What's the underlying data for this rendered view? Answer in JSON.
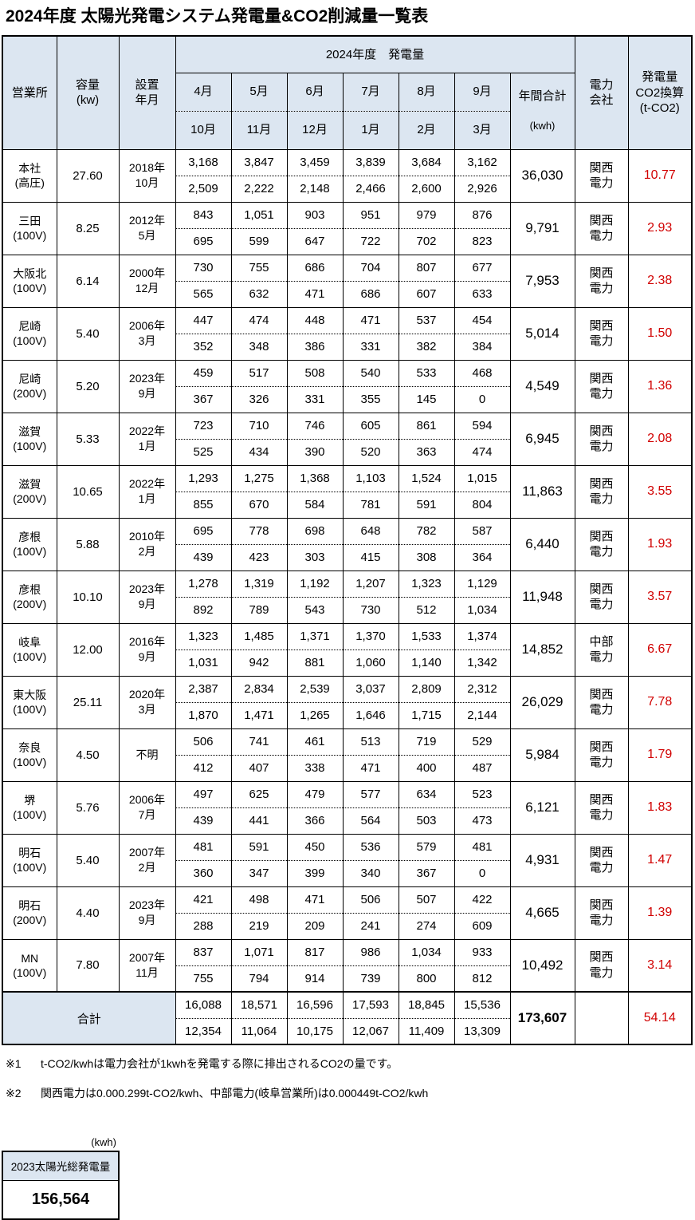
{
  "title": "2024年度 太陽光発電システム発電量&CO2削減量一覧表",
  "colors": {
    "header_bg": "#dce6f1",
    "co2_text": "#d10000",
    "border": "#000000"
  },
  "table": {
    "headers": {
      "office": "営業所",
      "capacity": "容量\n(kw)",
      "install": "設置\n年月",
      "generation": "2024年度　発電量",
      "months_top": [
        "4月",
        "5月",
        "6月",
        "7月",
        "8月",
        "9月"
      ],
      "months_bottom": [
        "10月",
        "11月",
        "12月",
        "1月",
        "2月",
        "3月"
      ],
      "annual": "年間合計",
      "annual_unit": "(kwh)",
      "company": "電力\n会社",
      "co2": "発電量\nCO2換算\n(t-CO2)"
    },
    "rows": [
      {
        "office": "本社\n(高圧)",
        "capacity": "27.60",
        "install": "2018年\n10月",
        "top": [
          "3,168",
          "3,847",
          "3,459",
          "3,839",
          "3,684",
          "3,162"
        ],
        "bottom": [
          "2,509",
          "2,222",
          "2,148",
          "2,466",
          "2,600",
          "2,926"
        ],
        "annual": "36,030",
        "company": "関西\n電力",
        "co2": "10.77"
      },
      {
        "office": "三田\n(100V)",
        "capacity": "8.25",
        "install": "2012年\n5月",
        "top": [
          "843",
          "1,051",
          "903",
          "951",
          "979",
          "876"
        ],
        "bottom": [
          "695",
          "599",
          "647",
          "722",
          "702",
          "823"
        ],
        "annual": "9,791",
        "company": "関西\n電力",
        "co2": "2.93"
      },
      {
        "office": "大阪北\n(100V)",
        "capacity": "6.14",
        "install": "2000年\n12月",
        "top": [
          "730",
          "755",
          "686",
          "704",
          "807",
          "677"
        ],
        "bottom": [
          "565",
          "632",
          "471",
          "686",
          "607",
          "633"
        ],
        "annual": "7,953",
        "company": "関西\n電力",
        "co2": "2.38"
      },
      {
        "office": "尼崎\n(100V)",
        "capacity": "5.40",
        "install": "2006年\n3月",
        "top": [
          "447",
          "474",
          "448",
          "471",
          "537",
          "454"
        ],
        "bottom": [
          "352",
          "348",
          "386",
          "331",
          "382",
          "384"
        ],
        "annual": "5,014",
        "company": "関西\n電力",
        "co2": "1.50"
      },
      {
        "office": "尼崎\n(200V)",
        "capacity": "5.20",
        "install": "2023年\n9月",
        "top": [
          "459",
          "517",
          "508",
          "540",
          "533",
          "468"
        ],
        "bottom": [
          "367",
          "326",
          "331",
          "355",
          "145",
          "0"
        ],
        "annual": "4,549",
        "company": "関西\n電力",
        "co2": "1.36"
      },
      {
        "office": "滋賀\n(100V)",
        "capacity": "5.33",
        "install": "2022年\n1月",
        "top": [
          "723",
          "710",
          "746",
          "605",
          "861",
          "594"
        ],
        "bottom": [
          "525",
          "434",
          "390",
          "520",
          "363",
          "474"
        ],
        "annual": "6,945",
        "company": "関西\n電力",
        "co2": "2.08"
      },
      {
        "office": "滋賀\n(200V)",
        "capacity": "10.65",
        "install": "2022年\n1月",
        "top": [
          "1,293",
          "1,275",
          "1,368",
          "1,103",
          "1,524",
          "1,015"
        ],
        "bottom": [
          "855",
          "670",
          "584",
          "781",
          "591",
          "804"
        ],
        "annual": "11,863",
        "company": "関西\n電力",
        "co2": "3.55"
      },
      {
        "office": "彦根\n(100V)",
        "capacity": "5.88",
        "install": "2010年\n2月",
        "top": [
          "695",
          "778",
          "698",
          "648",
          "782",
          "587"
        ],
        "bottom": [
          "439",
          "423",
          "303",
          "415",
          "308",
          "364"
        ],
        "annual": "6,440",
        "company": "関西\n電力",
        "co2": "1.93"
      },
      {
        "office": "彦根\n(200V)",
        "capacity": "10.10",
        "install": "2023年\n9月",
        "top": [
          "1,278",
          "1,319",
          "1,192",
          "1,207",
          "1,323",
          "1,129"
        ],
        "bottom": [
          "892",
          "789",
          "543",
          "730",
          "512",
          "1,034"
        ],
        "annual": "11,948",
        "company": "関西\n電力",
        "co2": "3.57"
      },
      {
        "office": "岐阜\n(100V)",
        "capacity": "12.00",
        "install": "2016年\n9月",
        "top": [
          "1,323",
          "1,485",
          "1,371",
          "1,370",
          "1,533",
          "1,374"
        ],
        "bottom": [
          "1,031",
          "942",
          "881",
          "1,060",
          "1,140",
          "1,342"
        ],
        "annual": "14,852",
        "company": "中部\n電力",
        "co2": "6.67"
      },
      {
        "office": "東大阪\n(100V)",
        "capacity": "25.11",
        "install": "2020年\n3月",
        "top": [
          "2,387",
          "2,834",
          "2,539",
          "3,037",
          "2,809",
          "2,312"
        ],
        "bottom": [
          "1,870",
          "1,471",
          "1,265",
          "1,646",
          "1,715",
          "2,144"
        ],
        "annual": "26,029",
        "company": "関西\n電力",
        "co2": "7.78"
      },
      {
        "office": "奈良\n(100V)",
        "capacity": "4.50",
        "install": "不明",
        "top": [
          "506",
          "741",
          "461",
          "513",
          "719",
          "529"
        ],
        "bottom": [
          "412",
          "407",
          "338",
          "471",
          "400",
          "487"
        ],
        "annual": "5,984",
        "company": "関西\n電力",
        "co2": "1.79"
      },
      {
        "office": "堺\n(100V)",
        "capacity": "5.76",
        "install": "2006年\n7月",
        "top": [
          "497",
          "625",
          "479",
          "577",
          "634",
          "523"
        ],
        "bottom": [
          "439",
          "441",
          "366",
          "564",
          "503",
          "473"
        ],
        "annual": "6,121",
        "company": "関西\n電力",
        "co2": "1.83"
      },
      {
        "office": "明石\n(100V)",
        "capacity": "5.40",
        "install": "2007年\n2月",
        "top": [
          "481",
          "591",
          "450",
          "536",
          "579",
          "481"
        ],
        "bottom": [
          "360",
          "347",
          "399",
          "340",
          "367",
          "0"
        ],
        "annual": "4,931",
        "company": "関西\n電力",
        "co2": "1.47"
      },
      {
        "office": "明石\n(200V)",
        "capacity": "4.40",
        "install": "2023年\n9月",
        "top": [
          "421",
          "498",
          "471",
          "506",
          "507",
          "422"
        ],
        "bottom": [
          "288",
          "219",
          "209",
          "241",
          "274",
          "609"
        ],
        "annual": "4,665",
        "company": "関西\n電力",
        "co2": "1.39"
      },
      {
        "office": "MN\n(100V)",
        "capacity": "7.80",
        "install": "2007年\n11月",
        "top": [
          "837",
          "1,071",
          "817",
          "986",
          "1,034",
          "933"
        ],
        "bottom": [
          "755",
          "794",
          "914",
          "739",
          "800",
          "812"
        ],
        "annual": "10,492",
        "company": "関西\n電力",
        "co2": "3.14"
      }
    ],
    "total": {
      "label": "合計",
      "top": [
        "16,088",
        "18,571",
        "16,596",
        "17,593",
        "18,845",
        "15,536"
      ],
      "bottom": [
        "12,354",
        "11,064",
        "10,175",
        "12,067",
        "11,409",
        "13,309"
      ],
      "annual": "173,607",
      "company": "",
      "co2": "54.14"
    }
  },
  "notes": [
    {
      "mark": "※1",
      "text": "t-CO2/kwhは電力会社が1kwhを発電する際に排出されるCO2の量です。"
    },
    {
      "mark": "※2",
      "text": "関西電力は0.000.299t-CO2/kwh、中部電力(岐阜営業所)は0.000449t-CO2/kwh"
    }
  ],
  "bottom_box": {
    "unit": "(kwh)",
    "label": "2023太陽光総発電量",
    "value": "156,564"
  }
}
